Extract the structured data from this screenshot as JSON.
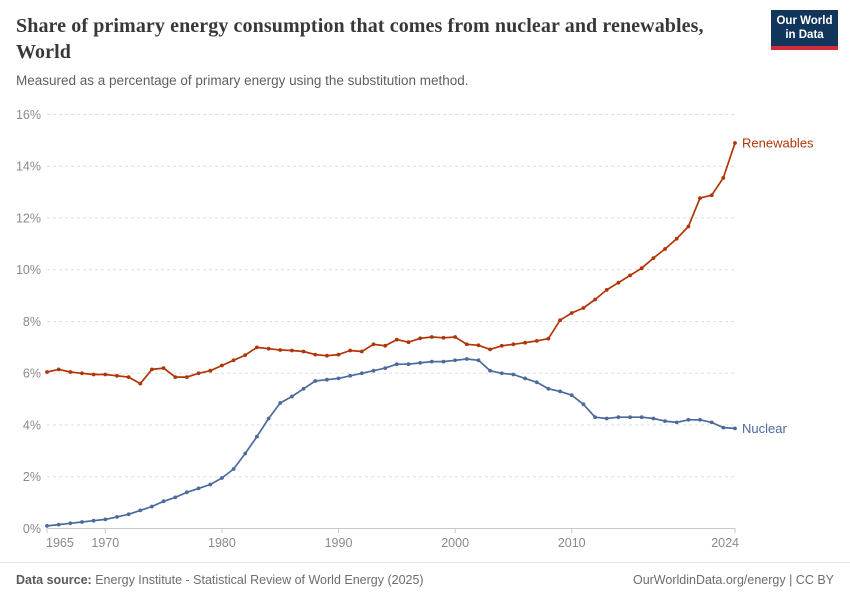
{
  "header": {
    "logo": {
      "line1": "Our World",
      "line2": "in Data",
      "bg": "#12355b",
      "accent": "#d42b3a"
    }
  },
  "chart_data": {
    "type": "line",
    "title": "Share of primary energy consumption that comes from nuclear and renewables, World",
    "subtitle": "Measured as a percentage of primary energy using the substitution method.",
    "xlabel": "",
    "ylabel": "",
    "xlim": [
      1965,
      2024
    ],
    "ylim": [
      0,
      16
    ],
    "x_ticks": [
      1965,
      1970,
      1980,
      1990,
      2000,
      2010,
      2024
    ],
    "y_ticks": [
      0,
      2,
      4,
      6,
      8,
      10,
      12,
      14,
      16
    ],
    "y_tick_suffix": "%",
    "grid": "horizontal dashed",
    "legend": "end-of-line labels",
    "x": [
      1965,
      1966,
      1967,
      1968,
      1969,
      1970,
      1971,
      1972,
      1973,
      1974,
      1975,
      1976,
      1977,
      1978,
      1979,
      1980,
      1981,
      1982,
      1983,
      1984,
      1985,
      1986,
      1987,
      1988,
      1989,
      1990,
      1991,
      1992,
      1993,
      1994,
      1995,
      1996,
      1997,
      1998,
      1999,
      2000,
      2001,
      2002,
      2003,
      2004,
      2005,
      2006,
      2007,
      2008,
      2009,
      2010,
      2011,
      2012,
      2013,
      2014,
      2015,
      2016,
      2017,
      2018,
      2019,
      2020,
      2021,
      2022,
      2023,
      2024
    ],
    "series": [
      {
        "name": "Renewables",
        "color": "#b13507",
        "values": [
          6.05,
          6.15,
          6.05,
          6.0,
          5.95,
          5.95,
          5.9,
          5.85,
          5.6,
          6.15,
          6.2,
          5.85,
          5.85,
          6.0,
          6.1,
          6.3,
          6.5,
          6.7,
          7.0,
          6.95,
          6.9,
          6.88,
          6.84,
          6.72,
          6.68,
          6.72,
          6.88,
          6.84,
          7.12,
          7.06,
          7.3,
          7.2,
          7.35,
          7.4,
          7.37,
          7.4,
          7.12,
          7.08,
          6.92,
          7.06,
          7.12,
          7.18,
          7.25,
          7.34,
          8.05,
          8.33,
          8.52,
          8.85,
          9.22,
          9.5,
          9.78,
          10.06,
          10.45,
          10.8,
          11.2,
          11.67,
          12.77,
          12.88,
          13.55,
          14.9
        ]
      },
      {
        "name": "Nuclear",
        "color": "#4c6a9c",
        "values": [
          0.1,
          0.15,
          0.2,
          0.25,
          0.3,
          0.35,
          0.45,
          0.55,
          0.7,
          0.85,
          1.05,
          1.2,
          1.4,
          1.55,
          1.7,
          1.95,
          2.3,
          2.9,
          3.55,
          4.25,
          4.85,
          5.1,
          5.4,
          5.7,
          5.75,
          5.8,
          5.9,
          6.0,
          6.1,
          6.2,
          6.35,
          6.35,
          6.4,
          6.45,
          6.45,
          6.5,
          6.55,
          6.5,
          6.1,
          6.0,
          5.95,
          5.8,
          5.65,
          5.4,
          5.3,
          5.15,
          4.8,
          4.3,
          4.25,
          4.3,
          4.3,
          4.3,
          4.25,
          4.15,
          4.1,
          4.2,
          4.2,
          4.1,
          3.9,
          3.87
        ]
      }
    ]
  },
  "footer": {
    "source_label": "Data source:",
    "source_text": " Energy Institute - Statistical Review of World Energy (2025)",
    "link": "OurWorldinData.org/energy",
    "separator": " | ",
    "license": "CC BY"
  }
}
